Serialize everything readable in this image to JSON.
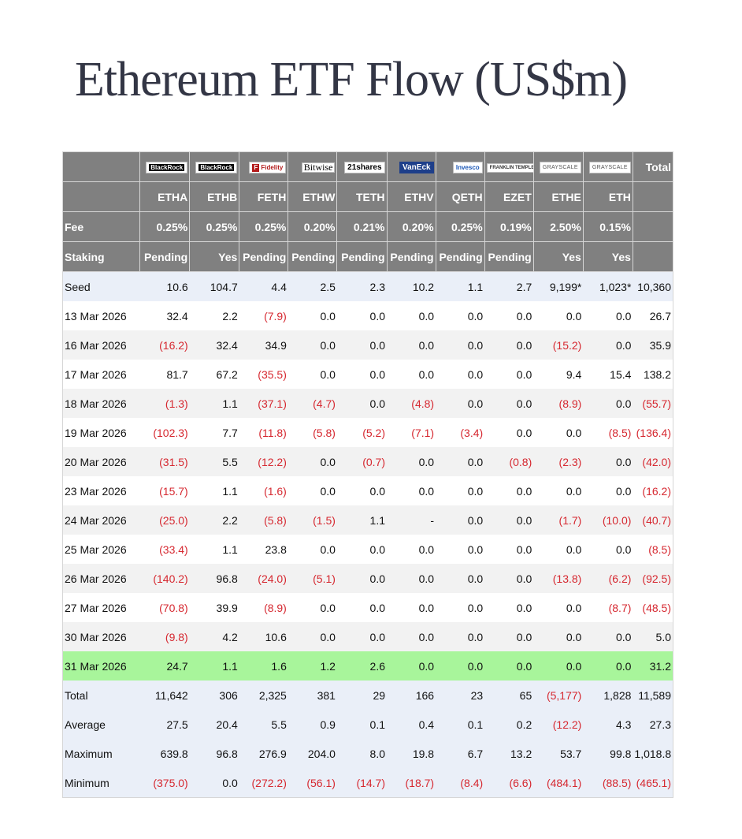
{
  "title": "Ethereum ETF Flow (US$m)",
  "colors": {
    "header_bg": "#808080",
    "negative": "#d62830",
    "highlight": "#a8f59b",
    "shade": "#eaeff8",
    "title": "#333645"
  },
  "issuers": [
    {
      "logo": "BlackRock",
      "icon": "blackrock-logo"
    },
    {
      "logo": "BlackRock",
      "icon": "blackrock-logo"
    },
    {
      "logo": "Fidelity",
      "icon": "fidelity-logo"
    },
    {
      "logo": "Bitwise",
      "icon": "bitwise-logo"
    },
    {
      "logo": "21shares",
      "icon": "21shares-logo"
    },
    {
      "logo": "VanEck",
      "icon": "vaneck-logo"
    },
    {
      "logo": "Invesco",
      "icon": "invesco-logo"
    },
    {
      "logo": "FRANKLIN TEMPLETON",
      "icon": "franklin-templeton-logo"
    },
    {
      "logo": "GRAYSCALE",
      "icon": "grayscale-logo"
    },
    {
      "logo": "GRAYSCALE",
      "icon": "grayscale-logo"
    }
  ],
  "total_header": "Total",
  "tickers": [
    "ETHA",
    "ETHB",
    "FETH",
    "ETHW",
    "TETH",
    "ETHV",
    "QETH",
    "EZET",
    "ETHE",
    "ETH"
  ],
  "fee": {
    "label": "Fee",
    "values": [
      "0.25%",
      "0.25%",
      "0.25%",
      "0.20%",
      "0.21%",
      "0.20%",
      "0.25%",
      "0.19%",
      "2.50%",
      "0.15%"
    ]
  },
  "staking": {
    "label": "Staking",
    "values": [
      "Pending",
      "Yes",
      "Pending",
      "Pending",
      "Pending",
      "Pending",
      "Pending",
      "Pending",
      "Yes",
      "Yes"
    ]
  },
  "rows": [
    {
      "label": "Seed",
      "values": [
        "10.6",
        "104.7",
        "4.4",
        "2.5",
        "2.3",
        "10.2",
        "1.1",
        "2.7",
        "9,199*",
        "1,023*",
        "10,360"
      ]
    },
    {
      "label": "13 Mar 2026",
      "values": [
        "32.4",
        "2.2",
        "(7.9)",
        "0.0",
        "0.0",
        "0.0",
        "0.0",
        "0.0",
        "0.0",
        "0.0",
        "26.7"
      ]
    },
    {
      "label": "16 Mar 2026",
      "values": [
        "(16.2)",
        "32.4",
        "34.9",
        "0.0",
        "0.0",
        "0.0",
        "0.0",
        "0.0",
        "(15.2)",
        "0.0",
        "35.9"
      ]
    },
    {
      "label": "17 Mar 2026",
      "values": [
        "81.7",
        "67.2",
        "(35.5)",
        "0.0",
        "0.0",
        "0.0",
        "0.0",
        "0.0",
        "9.4",
        "15.4",
        "138.2"
      ]
    },
    {
      "label": "18 Mar 2026",
      "values": [
        "(1.3)",
        "1.1",
        "(37.1)",
        "(4.7)",
        "0.0",
        "(4.8)",
        "0.0",
        "0.0",
        "(8.9)",
        "0.0",
        "(55.7)"
      ]
    },
    {
      "label": "19 Mar 2026",
      "values": [
        "(102.3)",
        "7.7",
        "(11.8)",
        "(5.8)",
        "(5.2)",
        "(7.1)",
        "(3.4)",
        "0.0",
        "0.0",
        "(8.5)",
        "(136.4)"
      ]
    },
    {
      "label": "20 Mar 2026",
      "values": [
        "(31.5)",
        "5.5",
        "(12.2)",
        "0.0",
        "(0.7)",
        "0.0",
        "0.0",
        "(0.8)",
        "(2.3)",
        "0.0",
        "(42.0)"
      ]
    },
    {
      "label": "23 Mar 2026",
      "values": [
        "(15.7)",
        "1.1",
        "(1.6)",
        "0.0",
        "0.0",
        "0.0",
        "0.0",
        "0.0",
        "0.0",
        "0.0",
        "(16.2)"
      ]
    },
    {
      "label": "24 Mar 2026",
      "values": [
        "(25.0)",
        "2.2",
        "(5.8)",
        "(1.5)",
        "1.1",
        "-",
        "0.0",
        "0.0",
        "(1.7)",
        "(10.0)",
        "(40.7)"
      ]
    },
    {
      "label": "25 Mar 2026",
      "values": [
        "(33.4)",
        "1.1",
        "23.8",
        "0.0",
        "0.0",
        "0.0",
        "0.0",
        "0.0",
        "0.0",
        "0.0",
        "(8.5)"
      ]
    },
    {
      "label": "26 Mar 2026",
      "values": [
        "(140.2)",
        "96.8",
        "(24.0)",
        "(5.1)",
        "0.0",
        "0.0",
        "0.0",
        "0.0",
        "(13.8)",
        "(6.2)",
        "(92.5)"
      ]
    },
    {
      "label": "27 Mar 2026",
      "values": [
        "(70.8)",
        "39.9",
        "(8.9)",
        "0.0",
        "0.0",
        "0.0",
        "0.0",
        "0.0",
        "0.0",
        "(8.7)",
        "(48.5)"
      ]
    },
    {
      "label": "30 Mar 2026",
      "values": [
        "(9.8)",
        "4.2",
        "10.6",
        "0.0",
        "0.0",
        "0.0",
        "0.0",
        "0.0",
        "0.0",
        "0.0",
        "5.0"
      ]
    },
    {
      "label": "31 Mar 2026",
      "values": [
        "24.7",
        "1.1",
        "1.6",
        "1.2",
        "2.6",
        "0.0",
        "0.0",
        "0.0",
        "0.0",
        "0.0",
        "31.2"
      ],
      "highlight": true
    },
    {
      "label": "Total",
      "values": [
        "11,642",
        "306",
        "2,325",
        "381",
        "29",
        "166",
        "23",
        "65",
        "(5,177)",
        "1,828",
        "11,589"
      ]
    },
    {
      "label": "Average",
      "values": [
        "27.5",
        "20.4",
        "5.5",
        "0.9",
        "0.1",
        "0.4",
        "0.1",
        "0.2",
        "(12.2)",
        "4.3",
        "27.3"
      ]
    },
    {
      "label": "Maximum",
      "values": [
        "639.8",
        "96.8",
        "276.9",
        "204.0",
        "8.0",
        "19.8",
        "6.7",
        "13.2",
        "53.7",
        "99.8",
        "1,018.8"
      ]
    },
    {
      "label": "Minimum",
      "values": [
        "(375.0)",
        "0.0",
        "(272.2)",
        "(56.1)",
        "(14.7)",
        "(18.7)",
        "(8.4)",
        "(6.6)",
        "(484.1)",
        "(88.5)",
        "(465.1)"
      ]
    }
  ]
}
